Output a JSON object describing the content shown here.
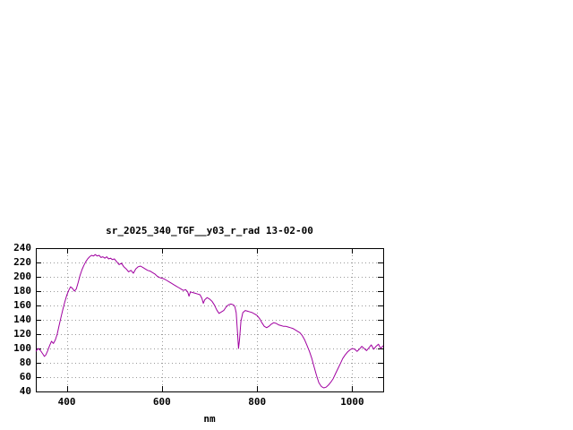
{
  "chart": {
    "title": "sr_2025_340_TGF__y03_r_rad 13-02-00",
    "xlabel": "nm"
  },
  "chart_data": {
    "type": "line",
    "title": "sr_2025_340_TGF__y03_r_rad 13-02-00",
    "xlabel": "nm",
    "ylabel": "",
    "xlim": [
      335,
      1065
    ],
    "ylim": [
      40,
      240
    ],
    "x_ticks": [
      400,
      600,
      800,
      1000
    ],
    "y_ticks": [
      40,
      60,
      80,
      100,
      120,
      140,
      160,
      180,
      200,
      220,
      240
    ],
    "grid": true,
    "legend": "none",
    "line_color": "#a000a0",
    "grid_color": "#9a9a9a",
    "border_color": "#000000",
    "series": [
      {
        "name": "sr_2025_340_TGF__y03_r_rad",
        "points": [
          [
            335,
            96
          ],
          [
            340,
            100
          ],
          [
            345,
            97
          ],
          [
            350,
            92
          ],
          [
            353,
            89
          ],
          [
            356,
            91
          ],
          [
            360,
            97
          ],
          [
            364,
            104
          ],
          [
            368,
            110
          ],
          [
            372,
            107
          ],
          [
            376,
            112
          ],
          [
            380,
            120
          ],
          [
            384,
            132
          ],
          [
            388,
            144
          ],
          [
            392,
            155
          ],
          [
            396,
            165
          ],
          [
            400,
            174
          ],
          [
            404,
            181
          ],
          [
            408,
            186
          ],
          [
            412,
            184
          ],
          [
            416,
            180
          ],
          [
            420,
            183
          ],
          [
            424,
            192
          ],
          [
            428,
            202
          ],
          [
            432,
            210
          ],
          [
            436,
            216
          ],
          [
            440,
            221
          ],
          [
            444,
            225
          ],
          [
            448,
            228
          ],
          [
            452,
            230
          ],
          [
            456,
            229
          ],
          [
            460,
            231
          ],
          [
            464,
            229
          ],
          [
            468,
            230
          ],
          [
            472,
            227
          ],
          [
            476,
            228
          ],
          [
            480,
            226
          ],
          [
            484,
            228
          ],
          [
            488,
            225
          ],
          [
            492,
            226
          ],
          [
            496,
            224
          ],
          [
            500,
            225
          ],
          [
            505,
            221
          ],
          [
            510,
            217
          ],
          [
            515,
            219
          ],
          [
            520,
            214
          ],
          [
            525,
            211
          ],
          [
            530,
            207
          ],
          [
            535,
            209
          ],
          [
            540,
            205
          ],
          [
            545,
            211
          ],
          [
            550,
            214
          ],
          [
            555,
            215
          ],
          [
            560,
            213
          ],
          [
            565,
            211
          ],
          [
            570,
            209
          ],
          [
            575,
            208
          ],
          [
            580,
            206
          ],
          [
            585,
            204
          ],
          [
            590,
            201
          ],
          [
            595,
            199
          ],
          [
            600,
            198
          ],
          [
            605,
            197
          ],
          [
            610,
            195
          ],
          [
            615,
            193
          ],
          [
            620,
            191
          ],
          [
            625,
            189
          ],
          [
            630,
            187
          ],
          [
            635,
            185
          ],
          [
            640,
            183
          ],
          [
            645,
            181
          ],
          [
            650,
            182
          ],
          [
            654,
            179
          ],
          [
            657,
            173
          ],
          [
            660,
            179
          ],
          [
            665,
            178
          ],
          [
            670,
            177
          ],
          [
            675,
            176
          ],
          [
            680,
            175
          ],
          [
            684,
            170
          ],
          [
            687,
            163
          ],
          [
            690,
            168
          ],
          [
            695,
            171
          ],
          [
            700,
            169
          ],
          [
            705,
            166
          ],
          [
            710,
            161
          ],
          [
            715,
            154
          ],
          [
            720,
            149
          ],
          [
            725,
            151
          ],
          [
            730,
            153
          ],
          [
            735,
            158
          ],
          [
            740,
            161
          ],
          [
            745,
            162
          ],
          [
            750,
            161
          ],
          [
            753,
            159
          ],
          [
            756,
            150
          ],
          [
            759,
            120
          ],
          [
            761,
            100
          ],
          [
            763,
            112
          ],
          [
            766,
            138
          ],
          [
            770,
            150
          ],
          [
            775,
            153
          ],
          [
            780,
            152
          ],
          [
            785,
            151
          ],
          [
            790,
            150
          ],
          [
            795,
            148
          ],
          [
            800,
            146
          ],
          [
            805,
            142
          ],
          [
            810,
            136
          ],
          [
            815,
            131
          ],
          [
            820,
            129
          ],
          [
            825,
            131
          ],
          [
            830,
            134
          ],
          [
            835,
            136
          ],
          [
            840,
            135
          ],
          [
            845,
            133
          ],
          [
            850,
            132
          ],
          [
            855,
            131
          ],
          [
            860,
            131
          ],
          [
            865,
            130
          ],
          [
            870,
            129
          ],
          [
            875,
            128
          ],
          [
            880,
            126
          ],
          [
            885,
            124
          ],
          [
            890,
            122
          ],
          [
            895,
            118
          ],
          [
            900,
            112
          ],
          [
            905,
            104
          ],
          [
            910,
            96
          ],
          [
            915,
            86
          ],
          [
            920,
            74
          ],
          [
            925,
            62
          ],
          [
            930,
            52
          ],
          [
            935,
            47
          ],
          [
            940,
            45
          ],
          [
            945,
            46
          ],
          [
            950,
            49
          ],
          [
            955,
            53
          ],
          [
            960,
            58
          ],
          [
            965,
            65
          ],
          [
            970,
            72
          ],
          [
            975,
            79
          ],
          [
            980,
            86
          ],
          [
            985,
            91
          ],
          [
            990,
            95
          ],
          [
            995,
            98
          ],
          [
            1000,
            100
          ],
          [
            1005,
            99
          ],
          [
            1010,
            96
          ],
          [
            1015,
            99
          ],
          [
            1020,
            103
          ],
          [
            1025,
            100
          ],
          [
            1030,
            97
          ],
          [
            1035,
            101
          ],
          [
            1040,
            105
          ],
          [
            1045,
            99
          ],
          [
            1050,
            103
          ],
          [
            1055,
            106
          ],
          [
            1060,
            100
          ],
          [
            1065,
            104
          ]
        ]
      }
    ]
  }
}
